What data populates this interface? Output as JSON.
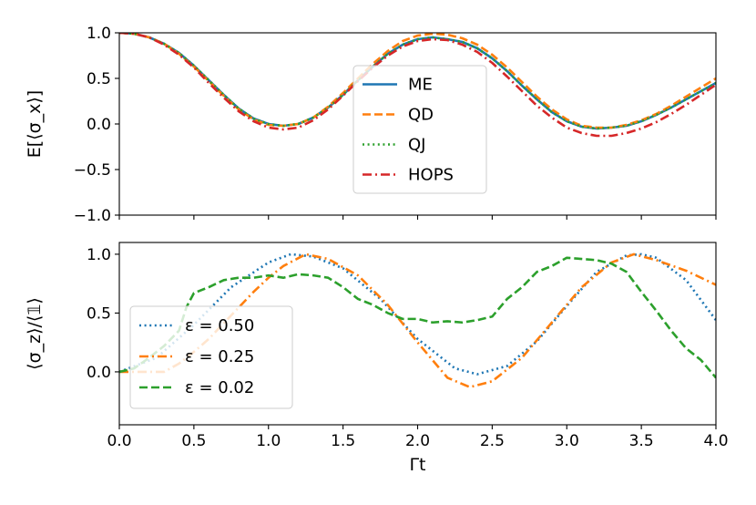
{
  "chart_data": [
    {
      "type": "line",
      "panel": "top",
      "ylabel": "E[⟨σ_x⟩]",
      "xlabel": "",
      "xlim": [
        0,
        4
      ],
      "ylim": [
        -1,
        1
      ],
      "xticks": [
        0,
        0.5,
        1,
        1.5,
        2,
        2.5,
        3,
        3.5,
        4
      ],
      "yticks": [
        -1.0,
        -0.5,
        0.0,
        0.5,
        1.0
      ],
      "ytick_labels": [
        "−1.0",
        "−0.5",
        "0.0",
        "0.5",
        "1.0"
      ],
      "legend_position": "center",
      "series": [
        {
          "name": "ME",
          "color": "#1f77b4",
          "dash": "solid",
          "x": [
            0,
            0.1,
            0.2,
            0.3,
            0.4,
            0.5,
            0.6,
            0.7,
            0.8,
            0.9,
            1.0,
            1.1,
            1.2,
            1.3,
            1.4,
            1.5,
            1.6,
            1.7,
            1.8,
            1.9,
            2.0,
            2.1,
            2.2,
            2.3,
            2.4,
            2.5,
            2.6,
            2.7,
            2.8,
            2.9,
            3.0,
            3.1,
            3.2,
            3.3,
            3.4,
            3.5,
            3.6,
            3.7,
            3.8,
            3.9,
            4.0
          ],
          "y": [
            1.0,
            0.99,
            0.95,
            0.88,
            0.78,
            0.64,
            0.48,
            0.32,
            0.17,
            0.06,
            0.0,
            -0.02,
            0.0,
            0.07,
            0.18,
            0.32,
            0.48,
            0.63,
            0.77,
            0.87,
            0.93,
            0.95,
            0.93,
            0.9,
            0.83,
            0.72,
            0.58,
            0.42,
            0.27,
            0.13,
            0.03,
            -0.03,
            -0.05,
            -0.04,
            -0.02,
            0.03,
            0.1,
            0.18,
            0.27,
            0.36,
            0.45
          ]
        },
        {
          "name": "QD",
          "color": "#ff7f0e",
          "dash": "dashed",
          "x": [
            0,
            0.1,
            0.2,
            0.3,
            0.4,
            0.5,
            0.6,
            0.7,
            0.8,
            0.9,
            1.0,
            1.1,
            1.2,
            1.3,
            1.4,
            1.5,
            1.6,
            1.7,
            1.8,
            1.9,
            2.0,
            2.1,
            2.2,
            2.3,
            2.4,
            2.5,
            2.6,
            2.7,
            2.8,
            2.9,
            3.0,
            3.1,
            3.2,
            3.3,
            3.4,
            3.5,
            3.6,
            3.7,
            3.8,
            3.9,
            4.0
          ],
          "y": [
            1.0,
            0.99,
            0.95,
            0.88,
            0.77,
            0.63,
            0.47,
            0.31,
            0.16,
            0.05,
            -0.01,
            -0.02,
            0.0,
            0.07,
            0.19,
            0.34,
            0.5,
            0.66,
            0.8,
            0.91,
            0.97,
            0.99,
            0.98,
            0.94,
            0.87,
            0.76,
            0.62,
            0.46,
            0.3,
            0.16,
            0.05,
            -0.02,
            -0.04,
            -0.04,
            -0.01,
            0.04,
            0.11,
            0.2,
            0.3,
            0.4,
            0.5
          ]
        },
        {
          "name": "QJ",
          "color": "#2ca02c",
          "dash": "dotted",
          "x": [
            0,
            0.1,
            0.2,
            0.3,
            0.4,
            0.5,
            0.6,
            0.7,
            0.8,
            0.9,
            1.0,
            1.1,
            1.2,
            1.3,
            1.4,
            1.5,
            1.6,
            1.7,
            1.8,
            1.9,
            2.0,
            2.1,
            2.2,
            2.3,
            2.4,
            2.5,
            2.6,
            2.7,
            2.8,
            2.9,
            3.0,
            3.1,
            3.2,
            3.3,
            3.4,
            3.5,
            3.6,
            3.7,
            3.8,
            3.9,
            4.0
          ],
          "y": [
            1.0,
            0.99,
            0.95,
            0.88,
            0.78,
            0.64,
            0.48,
            0.32,
            0.17,
            0.06,
            0.0,
            -0.02,
            0.0,
            0.07,
            0.18,
            0.32,
            0.48,
            0.63,
            0.77,
            0.87,
            0.93,
            0.95,
            0.93,
            0.9,
            0.83,
            0.72,
            0.58,
            0.42,
            0.27,
            0.13,
            0.03,
            -0.03,
            -0.05,
            -0.04,
            -0.02,
            0.03,
            0.1,
            0.18,
            0.27,
            0.36,
            0.45
          ]
        },
        {
          "name": "HOPS",
          "color": "#d62728",
          "dash": "dashdot",
          "x": [
            0,
            0.1,
            0.2,
            0.3,
            0.4,
            0.5,
            0.6,
            0.7,
            0.8,
            0.9,
            1.0,
            1.1,
            1.2,
            1.3,
            1.4,
            1.5,
            1.6,
            1.7,
            1.8,
            1.9,
            2.0,
            2.1,
            2.2,
            2.3,
            2.4,
            2.5,
            2.6,
            2.7,
            2.8,
            2.9,
            3.0,
            3.1,
            3.2,
            3.3,
            3.4,
            3.5,
            3.6,
            3.7,
            3.8,
            3.9,
            4.0
          ],
          "y": [
            1.0,
            0.99,
            0.95,
            0.87,
            0.76,
            0.62,
            0.45,
            0.29,
            0.14,
            0.03,
            -0.04,
            -0.06,
            -0.04,
            0.04,
            0.16,
            0.31,
            0.47,
            0.62,
            0.75,
            0.85,
            0.91,
            0.93,
            0.92,
            0.87,
            0.79,
            0.67,
            0.52,
            0.36,
            0.2,
            0.07,
            -0.04,
            -0.1,
            -0.13,
            -0.13,
            -0.1,
            -0.05,
            0.02,
            0.11,
            0.21,
            0.32,
            0.43
          ]
        }
      ]
    },
    {
      "type": "line",
      "panel": "bottom",
      "ylabel": "⟨σ_z⟩/⟨𝟙⟩",
      "xlabel": "Γt",
      "xlim": [
        0,
        4
      ],
      "ylim": [
        -0.45,
        1.1
      ],
      "xticks": [
        0,
        0.5,
        1,
        1.5,
        2,
        2.5,
        3,
        3.5,
        4
      ],
      "xtick_labels": [
        "0.0",
        "0.5",
        "1.0",
        "1.5",
        "2.0",
        "2.5",
        "3.0",
        "3.5",
        "4.0"
      ],
      "yticks": [
        0.0,
        0.5,
        1.0
      ],
      "ytick_labels": [
        "0.0",
        "0.5",
        "1.0"
      ],
      "legend_position": "lower-left",
      "series": [
        {
          "name": "ε = 0.50",
          "color": "#1f77b4",
          "dash": "dotted",
          "x": [
            0,
            0.25,
            0.5,
            0.75,
            1.0,
            1.15,
            1.3,
            1.5,
            1.75,
            2.0,
            2.25,
            2.4,
            2.6,
            2.8,
            3.0,
            3.2,
            3.4,
            3.5,
            3.6,
            3.8,
            4.0
          ],
          "y": [
            0.0,
            0.12,
            0.4,
            0.72,
            0.93,
            1.0,
            0.98,
            0.88,
            0.62,
            0.28,
            0.03,
            -0.02,
            0.05,
            0.26,
            0.56,
            0.85,
            0.99,
            1.0,
            0.97,
            0.78,
            0.44
          ]
        },
        {
          "name": "ε = 0.25",
          "color": "#ff7f0e",
          "dash": "dashdot",
          "x": [
            0,
            0.3,
            0.4,
            0.5,
            0.6,
            0.75,
            0.9,
            1.0,
            1.1,
            1.25,
            1.4,
            1.6,
            1.8,
            2.0,
            2.2,
            2.35,
            2.5,
            2.7,
            2.9,
            3.1,
            3.3,
            3.45,
            3.6,
            3.8,
            4.0
          ],
          "y": [
            0.0,
            0.0,
            0.07,
            0.17,
            0.28,
            0.48,
            0.68,
            0.8,
            0.9,
            1.0,
            0.96,
            0.82,
            0.57,
            0.25,
            -0.05,
            -0.13,
            -0.08,
            0.12,
            0.42,
            0.72,
            0.93,
            1.0,
            0.95,
            0.86,
            0.74
          ]
        },
        {
          "name": "ε = 0.02",
          "color": "#2ca02c",
          "dash": "dashed",
          "x": [
            0,
            0.1,
            0.2,
            0.3,
            0.4,
            0.45,
            0.5,
            0.6,
            0.7,
            0.8,
            0.9,
            1.0,
            1.1,
            1.2,
            1.3,
            1.4,
            1.5,
            1.6,
            1.7,
            1.8,
            1.9,
            2.0,
            2.1,
            2.2,
            2.3,
            2.4,
            2.5,
            2.6,
            2.7,
            2.8,
            2.9,
            3.0,
            3.1,
            3.2,
            3.3,
            3.4,
            3.5,
            3.6,
            3.7,
            3.8,
            3.9,
            4.0
          ],
          "y": [
            0.0,
            0.03,
            0.12,
            0.22,
            0.35,
            0.55,
            0.67,
            0.72,
            0.78,
            0.8,
            0.8,
            0.82,
            0.8,
            0.83,
            0.82,
            0.8,
            0.72,
            0.62,
            0.57,
            0.5,
            0.45,
            0.45,
            0.42,
            0.43,
            0.42,
            0.44,
            0.47,
            0.62,
            0.72,
            0.85,
            0.9,
            0.97,
            0.96,
            0.95,
            0.92,
            0.85,
            0.68,
            0.52,
            0.35,
            0.2,
            0.1,
            -0.05
          ]
        }
      ]
    }
  ]
}
